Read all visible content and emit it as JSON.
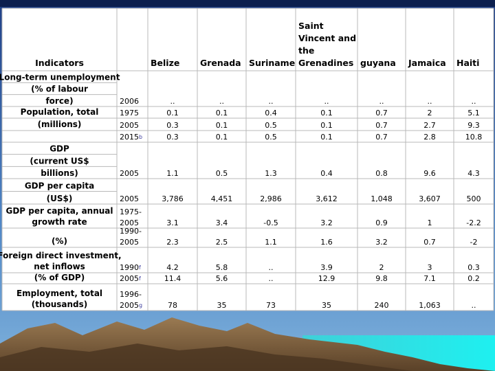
{
  "table": {
    "header": {
      "indicator": "Indicators",
      "countries": [
        [
          "Belize"
        ],
        [
          "Grenada"
        ],
        [
          "Suriname"
        ],
        [
          "Saint",
          "Vincent and",
          "the",
          "Grenadines"
        ],
        [
          "guyana"
        ],
        [
          "Jamaica"
        ],
        [
          "Haiti"
        ]
      ]
    },
    "rows": [
      {
        "indicator": [
          "Long-term unemployment",
          "(% of labour",
          "force)"
        ],
        "year": [
          "2006"
        ],
        "values": [
          "..",
          "..",
          "..",
          "..",
          "..",
          "..",
          ".."
        ]
      },
      {
        "indicator": [
          "Population, total"
        ],
        "year": [
          "1975"
        ],
        "values": [
          "0.1",
          "0.1",
          "0.4",
          "0.1",
          "0.7",
          "2",
          "5.1"
        ]
      },
      {
        "indicator": [
          "(millions)"
        ],
        "year": [
          "2005"
        ],
        "values": [
          "0.3",
          "0.1",
          "0.5",
          "0.1",
          "0.7",
          "2.7",
          "9.3"
        ]
      },
      {
        "year": [
          "2015"
        ],
        "year_note": "b",
        "values": [
          "0.3",
          "0.1",
          "0.5",
          "0.1",
          "0.7",
          "2.8",
          "10.8"
        ]
      },
      {
        "indicator": [
          "GDP",
          "(current US$",
          "billions)"
        ],
        "year": [
          "2005"
        ],
        "values": [
          "1.1",
          "0.5",
          "1.3",
          "0.4",
          "0.8",
          "9.6",
          "4.3"
        ]
      },
      {
        "indicator": [
          "GDP per capita",
          "(US$)"
        ],
        "year": [
          "2005"
        ],
        "values": [
          "3,786",
          "4,451",
          "2,986",
          "3,612",
          "1,048",
          "3,607",
          "500"
        ]
      },
      {
        "indicator": [
          "GDP per capita, annual",
          "growth rate"
        ],
        "year": [
          "1975-",
          "2005"
        ],
        "values": [
          "3.1",
          "3.4",
          "-0.5",
          "3.2",
          "0.9",
          "1",
          "-2.2"
        ]
      },
      {
        "indicator": [
          "(%)"
        ],
        "year": [
          "1990-",
          "2005"
        ],
        "values": [
          "2.3",
          "2.5",
          "1.1",
          "1.6",
          "3.2",
          "0.7",
          "-2"
        ]
      },
      {
        "indicator": [
          "Foreign direct investment,",
          "net inflows"
        ],
        "year": [
          "1990"
        ],
        "year_note": "f",
        "values": [
          "4.2",
          "5.8",
          "..",
          "3.9",
          "2",
          "3",
          "0.3"
        ]
      },
      {
        "indicator": [
          "(% of GDP)"
        ],
        "year": [
          "2005"
        ],
        "year_note": "f",
        "values": [
          "11.4",
          "5.6",
          "..",
          "12.9",
          "9.8",
          "7.1",
          "0.2"
        ]
      },
      {
        "indicator": [
          "Employment, total",
          "(thousands)"
        ],
        "year": [
          "1996-",
          "2005"
        ],
        "year_note": "g",
        "values": [
          "78",
          "35",
          "73",
          "35",
          "240",
          "1,063",
          ".."
        ]
      }
    ]
  }
}
